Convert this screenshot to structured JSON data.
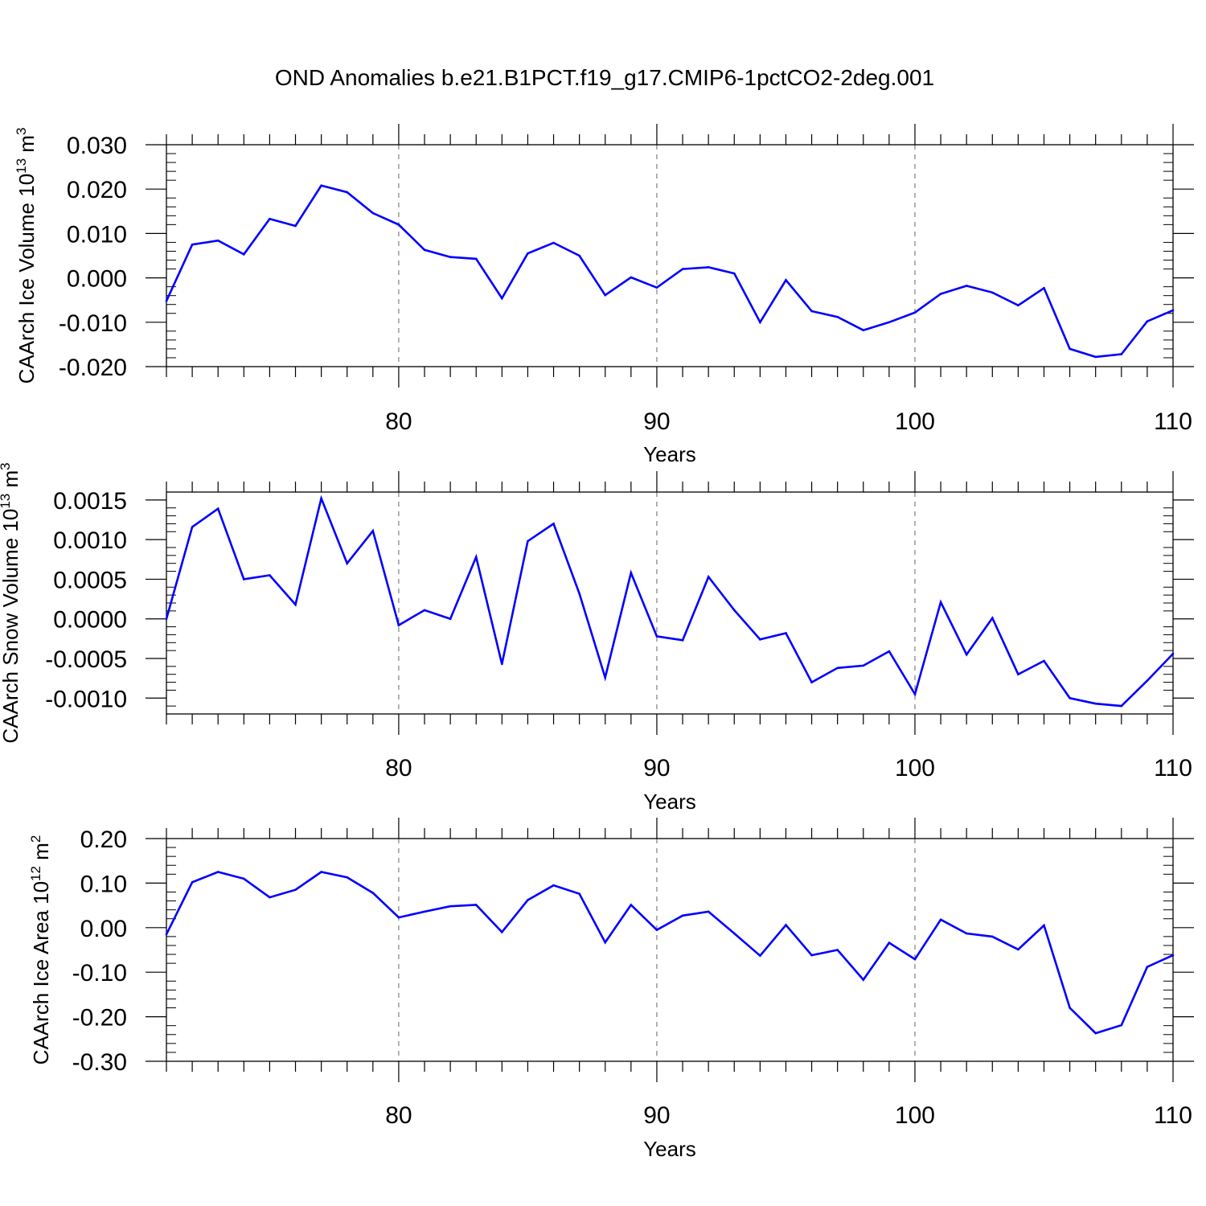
{
  "chart_data": {
    "type": "line",
    "title": "OND Anomalies b.e21.B1PCT.f19_g17.CMIP6-1pctCO2-2deg.001",
    "x": [
      71,
      72,
      73,
      74,
      75,
      76,
      77,
      78,
      79,
      80,
      81,
      82,
      83,
      84,
      85,
      86,
      87,
      88,
      89,
      90,
      91,
      92,
      93,
      94,
      95,
      96,
      97,
      98,
      99,
      100,
      101,
      102,
      103,
      104,
      105,
      106,
      107,
      108,
      109,
      110
    ],
    "xlim": [
      71,
      110
    ],
    "x_ticks": [
      80,
      90,
      100,
      110
    ],
    "x_tick_labels": [
      "80",
      "90",
      "100",
      "110"
    ],
    "grid": "dashed vertical lines at major x ticks",
    "line_color": "#0000ff",
    "panels": [
      {
        "xlabel": "Years",
        "ylabel_text": "CAArch Ice Volume 10",
        "ylabel_exp": "13",
        "ylabel_unit": " m",
        "ylabel_unit_exp": "3",
        "ylim": [
          -0.02,
          0.03
        ],
        "y_ticks": [
          -0.02,
          -0.01,
          0.0,
          0.01,
          0.02,
          0.03
        ],
        "y_tick_labels": [
          "-0.020",
          "-0.010",
          "0.000",
          "0.010",
          "0.020",
          "0.030"
        ],
        "values": [
          -0.0052,
          0.0075,
          0.0084,
          0.0053,
          0.0133,
          0.0117,
          0.0208,
          0.0193,
          0.0146,
          0.012,
          0.0063,
          0.0047,
          0.0043,
          -0.0046,
          0.0055,
          0.0079,
          0.005,
          -0.0039,
          0.0001,
          -0.0022,
          0.002,
          0.0024,
          0.001,
          -0.01,
          -0.0005,
          -0.0075,
          -0.0088,
          -0.0118,
          -0.01,
          -0.0078,
          -0.0036,
          -0.0018,
          -0.0033,
          -0.0062,
          -0.0023,
          -0.016,
          -0.0178,
          -0.0172,
          -0.0098,
          -0.0073
        ]
      },
      {
        "xlabel": "Years",
        "ylabel_text": "CAArch Snow Volume 10",
        "ylabel_exp": "13",
        "ylabel_unit": " m",
        "ylabel_unit_exp": "3",
        "ylim": [
          -0.0012,
          0.0016
        ],
        "y_ticks": [
          -0.001,
          -0.0005,
          0.0,
          0.0005,
          0.001,
          0.0015
        ],
        "y_tick_labels": [
          "-0.0010",
          "-0.0005",
          "0.0000",
          "0.0005",
          "0.0010",
          "0.0015"
        ],
        "values": [
          0.0,
          0.00116,
          0.00139,
          0.0005,
          0.00055,
          0.00018,
          0.00152,
          0.0007,
          0.00111,
          -8e-05,
          0.00011,
          0.0,
          0.00078,
          -0.00057,
          0.00098,
          0.0012,
          0.00032,
          -0.00074,
          0.00058,
          -0.00022,
          -0.00027,
          0.00053,
          0.00011,
          -0.00026,
          -0.00018,
          -0.0008,
          -0.00062,
          -0.00059,
          -0.00041,
          -0.00095,
          0.00021,
          -0.00045,
          1e-05,
          -0.0007,
          -0.00053,
          -0.001,
          -0.00107,
          -0.0011,
          -0.00078,
          -0.00044
        ]
      },
      {
        "xlabel": "Years",
        "ylabel_text": "CAArch Ice Area 10",
        "ylabel_exp": "12",
        "ylabel_unit": " m",
        "ylabel_unit_exp": "2",
        "ylim": [
          -0.3,
          0.2
        ],
        "y_ticks": [
          -0.3,
          -0.2,
          -0.1,
          0.0,
          0.1,
          0.2
        ],
        "y_tick_labels": [
          "-0.30",
          "-0.20",
          "-0.10",
          "0.00",
          "0.10",
          "0.20"
        ],
        "values": [
          -0.015,
          0.102,
          0.125,
          0.11,
          0.068,
          0.085,
          0.125,
          0.113,
          0.078,
          0.023,
          0.036,
          0.048,
          0.051,
          -0.01,
          0.062,
          0.095,
          0.076,
          -0.033,
          0.051,
          -0.005,
          0.027,
          0.036,
          -0.013,
          -0.063,
          0.006,
          -0.062,
          -0.05,
          -0.117,
          -0.034,
          -0.071,
          0.018,
          -0.013,
          -0.02,
          -0.049,
          0.005,
          -0.18,
          -0.237,
          -0.219,
          -0.088,
          -0.062
        ]
      }
    ]
  }
}
